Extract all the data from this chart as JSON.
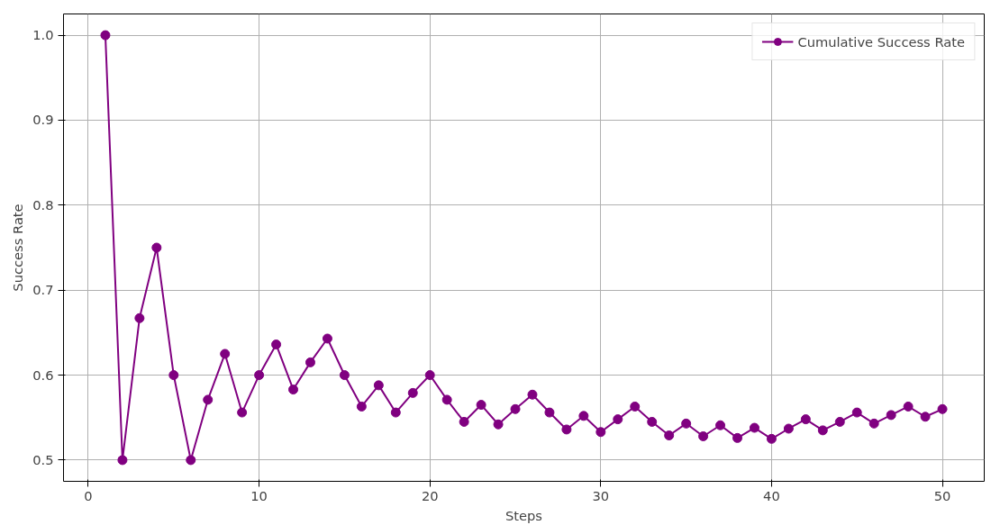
{
  "chart_data": {
    "type": "line",
    "xlabel": "Steps",
    "ylabel": "Success Rate",
    "x": [
      1,
      2,
      3,
      4,
      5,
      6,
      7,
      8,
      9,
      10,
      11,
      12,
      13,
      14,
      15,
      16,
      17,
      18,
      19,
      20,
      21,
      22,
      23,
      24,
      25,
      26,
      27,
      28,
      29,
      30,
      31,
      32,
      33,
      34,
      35,
      36,
      37,
      38,
      39,
      40,
      41,
      42,
      43,
      44,
      45,
      46,
      47,
      48,
      49,
      50
    ],
    "series": [
      {
        "name": "Cumulative Success Rate",
        "color": "#800080",
        "values": [
          1.0,
          0.5,
          0.667,
          0.75,
          0.6,
          0.5,
          0.571,
          0.625,
          0.556,
          0.6,
          0.636,
          0.583,
          0.615,
          0.643,
          0.6,
          0.563,
          0.588,
          0.556,
          0.579,
          0.6,
          0.571,
          0.545,
          0.565,
          0.542,
          0.56,
          0.577,
          0.556,
          0.536,
          0.552,
          0.533,
          0.548,
          0.563,
          0.545,
          0.529,
          0.543,
          0.528,
          0.541,
          0.526,
          0.538,
          0.525,
          0.537,
          0.548,
          0.535,
          0.545,
          0.556,
          0.543,
          0.553,
          0.563,
          0.551,
          0.56
        ]
      }
    ],
    "xlim": [
      -1.45,
      52.45
    ],
    "ylim": [
      0.475,
      1.025
    ],
    "xticks": [
      0,
      10,
      20,
      30,
      40,
      50
    ],
    "yticks": [
      {
        "value": 0.5,
        "label": "0.5"
      },
      {
        "value": 0.6,
        "label": "0.6"
      },
      {
        "value": 0.7,
        "label": "0.7"
      },
      {
        "value": 0.8,
        "label": "0.8"
      },
      {
        "value": 0.9,
        "label": "0.9"
      },
      {
        "value": 1.0,
        "label": "1.0"
      }
    ],
    "grid": true,
    "legend": "top right",
    "marker": "circle",
    "line_style": "solid"
  }
}
